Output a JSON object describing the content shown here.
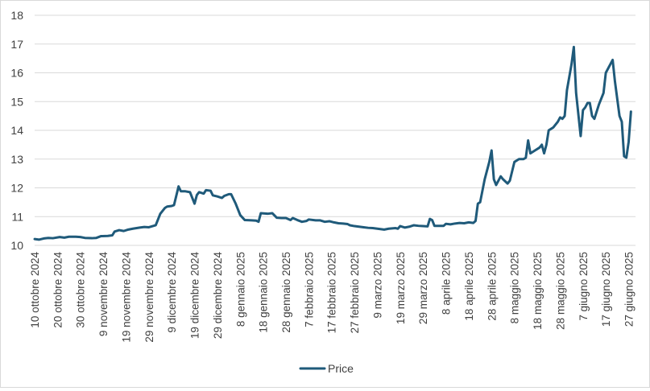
{
  "chart_data": {
    "type": "line",
    "title": "",
    "xlabel": "",
    "ylabel": "",
    "ylim": [
      10,
      18
    ],
    "y_ticks": [
      10,
      11,
      12,
      13,
      14,
      15,
      16,
      17,
      18
    ],
    "grid": "horizontal",
    "legend_position": "bottom",
    "x_range": [
      "2024-10-10",
      "2025-06-30"
    ],
    "x_tick_labels": [
      {
        "date": "2024-10-10",
        "label": "10 ottobre 2024"
      },
      {
        "date": "2024-10-20",
        "label": "20 ottobre 2024"
      },
      {
        "date": "2024-10-30",
        "label": "30 ottobre 2024"
      },
      {
        "date": "2024-11-09",
        "label": "9 novembre 2024"
      },
      {
        "date": "2024-11-19",
        "label": "19 novembre 2024"
      },
      {
        "date": "2024-11-29",
        "label": "29 novembre 2024"
      },
      {
        "date": "2024-12-09",
        "label": "9 dicembre 2024"
      },
      {
        "date": "2024-12-19",
        "label": "19 dicembre 2024"
      },
      {
        "date": "2024-12-29",
        "label": "29 dicembre 2024"
      },
      {
        "date": "2025-01-08",
        "label": "8 gennaio 2025"
      },
      {
        "date": "2025-01-18",
        "label": "18 gennaio 2025"
      },
      {
        "date": "2025-01-28",
        "label": "28 gennaio 2025"
      },
      {
        "date": "2025-02-07",
        "label": "7 febbraio 2025"
      },
      {
        "date": "2025-02-17",
        "label": "17 febbraio 2025"
      },
      {
        "date": "2025-02-27",
        "label": "27 febbraio 2025"
      },
      {
        "date": "2025-03-09",
        "label": "9 marzo 2025"
      },
      {
        "date": "2025-03-19",
        "label": "19 marzo 2025"
      },
      {
        "date": "2025-03-29",
        "label": "29 marzo 2025"
      },
      {
        "date": "2025-04-08",
        "label": "8 aprile 2025"
      },
      {
        "date": "2025-04-18",
        "label": "18 aprile 2025"
      },
      {
        "date": "2025-04-28",
        "label": "28 aprile 2025"
      },
      {
        "date": "2025-05-08",
        "label": "8 maggio 2025"
      },
      {
        "date": "2025-05-18",
        "label": "18 maggio 2025"
      },
      {
        "date": "2025-05-28",
        "label": "28 maggio 2025"
      },
      {
        "date": "2025-06-07",
        "label": "7 giugno 2025"
      },
      {
        "date": "2025-06-17",
        "label": "17 giugno 2025"
      },
      {
        "date": "2025-06-27",
        "label": "27 giugno 2025"
      }
    ],
    "series": [
      {
        "name": "Price",
        "color": "#1f5a7a",
        "points": [
          [
            "2024-10-10",
            10.22
          ],
          [
            "2024-10-12",
            10.2
          ],
          [
            "2024-10-14",
            10.24
          ],
          [
            "2024-10-16",
            10.26
          ],
          [
            "2024-10-18",
            10.25
          ],
          [
            "2024-10-21",
            10.29
          ],
          [
            "2024-10-23",
            10.27
          ],
          [
            "2024-10-25",
            10.3
          ],
          [
            "2024-10-28",
            10.3
          ],
          [
            "2024-10-30",
            10.29
          ],
          [
            "2024-11-01",
            10.26
          ],
          [
            "2024-11-04",
            10.25
          ],
          [
            "2024-11-06",
            10.26
          ],
          [
            "2024-11-08",
            10.32
          ],
          [
            "2024-11-11",
            10.33
          ],
          [
            "2024-11-13",
            10.35
          ],
          [
            "2024-11-14",
            10.48
          ],
          [
            "2024-11-16",
            10.53
          ],
          [
            "2024-11-18",
            10.5
          ],
          [
            "2024-11-20",
            10.55
          ],
          [
            "2024-11-22",
            10.58
          ],
          [
            "2024-11-25",
            10.62
          ],
          [
            "2024-11-27",
            10.64
          ],
          [
            "2024-11-29",
            10.63
          ],
          [
            "2024-12-02",
            10.7
          ],
          [
            "2024-12-04",
            11.1
          ],
          [
            "2024-12-06",
            11.3
          ],
          [
            "2024-12-07",
            11.35
          ],
          [
            "2024-12-09",
            11.37
          ],
          [
            "2024-12-10",
            11.4
          ],
          [
            "2024-12-12",
            12.05
          ],
          [
            "2024-12-13",
            11.88
          ],
          [
            "2024-12-15",
            11.88
          ],
          [
            "2024-12-17",
            11.85
          ],
          [
            "2024-12-19",
            11.45
          ],
          [
            "2024-12-20",
            11.75
          ],
          [
            "2024-12-21",
            11.85
          ],
          [
            "2024-12-23",
            11.8
          ],
          [
            "2024-12-24",
            11.92
          ],
          [
            "2024-12-26",
            11.9
          ],
          [
            "2024-12-27",
            11.74
          ],
          [
            "2024-12-29",
            11.7
          ],
          [
            "2024-12-31",
            11.65
          ],
          [
            "2025-01-01",
            11.72
          ],
          [
            "2025-01-03",
            11.78
          ],
          [
            "2025-01-04",
            11.78
          ],
          [
            "2025-01-06",
            11.45
          ],
          [
            "2025-01-08",
            11.05
          ],
          [
            "2025-01-10",
            10.88
          ],
          [
            "2025-01-13",
            10.87
          ],
          [
            "2025-01-15",
            10.86
          ],
          [
            "2025-01-16",
            10.82
          ],
          [
            "2025-01-17",
            11.12
          ],
          [
            "2025-01-20",
            11.1
          ],
          [
            "2025-01-22",
            11.12
          ],
          [
            "2025-01-24",
            10.96
          ],
          [
            "2025-01-26",
            10.95
          ],
          [
            "2025-01-28",
            10.95
          ],
          [
            "2025-01-30",
            10.88
          ],
          [
            "2025-01-31",
            10.95
          ],
          [
            "2025-02-02",
            10.88
          ],
          [
            "2025-02-04",
            10.82
          ],
          [
            "2025-02-06",
            10.85
          ],
          [
            "2025-02-07",
            10.9
          ],
          [
            "2025-02-10",
            10.87
          ],
          [
            "2025-02-12",
            10.87
          ],
          [
            "2025-02-14",
            10.82
          ],
          [
            "2025-02-16",
            10.84
          ],
          [
            "2025-02-18",
            10.8
          ],
          [
            "2025-02-20",
            10.77
          ],
          [
            "2025-02-22",
            10.76
          ],
          [
            "2025-02-24",
            10.74
          ],
          [
            "2025-02-25",
            10.7
          ],
          [
            "2025-02-27",
            10.67
          ],
          [
            "2025-03-01",
            10.65
          ],
          [
            "2025-03-03",
            10.63
          ],
          [
            "2025-03-05",
            10.61
          ],
          [
            "2025-03-07",
            10.6
          ],
          [
            "2025-03-09",
            10.58
          ],
          [
            "2025-03-12",
            10.55
          ],
          [
            "2025-03-14",
            10.58
          ],
          [
            "2025-03-17",
            10.6
          ],
          [
            "2025-03-18",
            10.58
          ],
          [
            "2025-03-19",
            10.67
          ],
          [
            "2025-03-21",
            10.62
          ],
          [
            "2025-03-23",
            10.65
          ],
          [
            "2025-03-25",
            10.7
          ],
          [
            "2025-03-27",
            10.68
          ],
          [
            "2025-03-29",
            10.67
          ],
          [
            "2025-03-31",
            10.66
          ],
          [
            "2025-04-01",
            10.92
          ],
          [
            "2025-04-02",
            10.88
          ],
          [
            "2025-04-03",
            10.68
          ],
          [
            "2025-04-05",
            10.68
          ],
          [
            "2025-04-07",
            10.68
          ],
          [
            "2025-04-08",
            10.75
          ],
          [
            "2025-04-10",
            10.73
          ],
          [
            "2025-04-12",
            10.76
          ],
          [
            "2025-04-14",
            10.78
          ],
          [
            "2025-04-16",
            10.77
          ],
          [
            "2025-04-18",
            10.8
          ],
          [
            "2025-04-20",
            10.78
          ],
          [
            "2025-04-21",
            10.85
          ],
          [
            "2025-04-22",
            11.45
          ],
          [
            "2025-04-23",
            11.5
          ],
          [
            "2025-04-25",
            12.3
          ],
          [
            "2025-04-27",
            12.9
          ],
          [
            "2025-04-28",
            13.3
          ],
          [
            "2025-04-29",
            12.3
          ],
          [
            "2025-04-30",
            12.1
          ],
          [
            "2025-05-01",
            12.25
          ],
          [
            "2025-05-02",
            12.4
          ],
          [
            "2025-05-03",
            12.3
          ],
          [
            "2025-05-05",
            12.15
          ],
          [
            "2025-05-06",
            12.25
          ],
          [
            "2025-05-08",
            12.9
          ],
          [
            "2025-05-10",
            13.0
          ],
          [
            "2025-05-12",
            13.0
          ],
          [
            "2025-05-13",
            13.05
          ],
          [
            "2025-05-14",
            13.65
          ],
          [
            "2025-05-15",
            13.2
          ],
          [
            "2025-05-17",
            13.3
          ],
          [
            "2025-05-19",
            13.4
          ],
          [
            "2025-05-20",
            13.5
          ],
          [
            "2025-05-21",
            13.2
          ],
          [
            "2025-05-22",
            13.5
          ],
          [
            "2025-05-23",
            14.0
          ],
          [
            "2025-05-25",
            14.1
          ],
          [
            "2025-05-27",
            14.3
          ],
          [
            "2025-05-28",
            14.45
          ],
          [
            "2025-05-29",
            14.4
          ],
          [
            "2025-05-30",
            14.5
          ],
          [
            "2025-05-31",
            15.4
          ],
          [
            "2025-06-02",
            16.3
          ],
          [
            "2025-06-03",
            16.9
          ],
          [
            "2025-06-04",
            15.3
          ],
          [
            "2025-06-06",
            13.8
          ],
          [
            "2025-06-07",
            14.7
          ],
          [
            "2025-06-08",
            14.8
          ],
          [
            "2025-06-09",
            14.95
          ],
          [
            "2025-06-10",
            14.95
          ],
          [
            "2025-06-11",
            14.5
          ],
          [
            "2025-06-12",
            14.4
          ],
          [
            "2025-06-14",
            14.9
          ],
          [
            "2025-06-16",
            15.3
          ],
          [
            "2025-06-17",
            16.0
          ],
          [
            "2025-06-19",
            16.3
          ],
          [
            "2025-06-20",
            16.45
          ],
          [
            "2025-06-21",
            15.7
          ],
          [
            "2025-06-23",
            14.5
          ],
          [
            "2025-06-24",
            14.3
          ],
          [
            "2025-06-25",
            13.1
          ],
          [
            "2025-06-26",
            13.05
          ],
          [
            "2025-06-27",
            13.6
          ],
          [
            "2025-06-28",
            14.65
          ]
        ]
      }
    ],
    "legend": [
      {
        "label": "Price",
        "color": "#1f5a7a"
      }
    ]
  }
}
